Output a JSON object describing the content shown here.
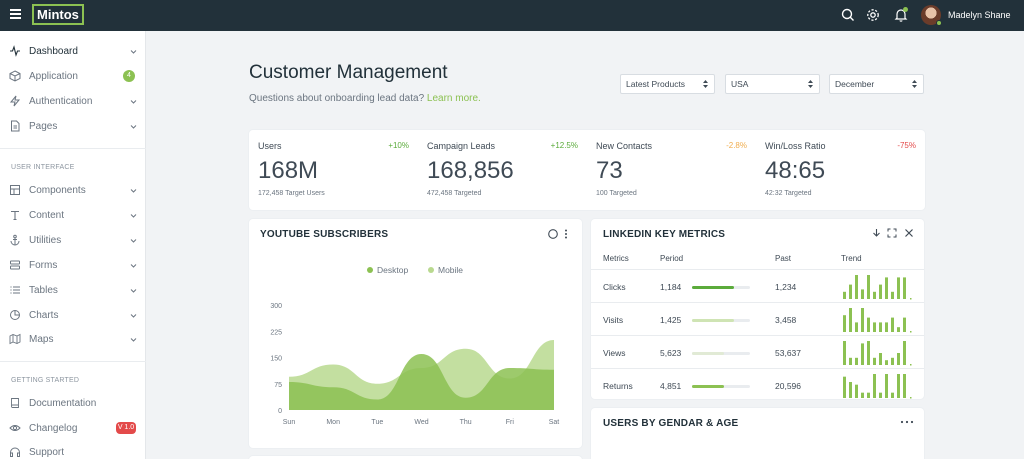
{
  "topbar": {
    "logo": "Mintos",
    "user_name": "Madelyn Shane"
  },
  "sidebar": {
    "items": [
      {
        "label": "Dashboard",
        "icon": "activity-icon"
      },
      {
        "label": "Application",
        "icon": "box-icon",
        "badge": "4"
      },
      {
        "label": "Authentication",
        "icon": "zap-icon"
      },
      {
        "label": "Pages",
        "icon": "file-icon"
      }
    ],
    "section_ui": "USER INTERFACE",
    "ui_items": [
      {
        "label": "Components",
        "icon": "grid-icon"
      },
      {
        "label": "Content",
        "icon": "type-icon"
      },
      {
        "label": "Utilities",
        "icon": "anchor-icon"
      },
      {
        "label": "Forms",
        "icon": "forms-icon"
      },
      {
        "label": "Tables",
        "icon": "list-icon"
      },
      {
        "label": "Charts",
        "icon": "pie-chart-icon"
      },
      {
        "label": "Maps",
        "icon": "map-icon"
      }
    ],
    "section_start": "GETTING STARTED",
    "start_items": [
      {
        "label": "Documentation",
        "icon": "book-icon"
      },
      {
        "label": "Changelog",
        "icon": "eye-icon",
        "badge": "V 1.0"
      },
      {
        "label": "Support",
        "icon": "headphones-icon"
      }
    ]
  },
  "header": {
    "title": "Customer Management",
    "subtitle": "Questions about onboarding lead data?",
    "link": "Learn more.",
    "filters": [
      "Latest Products",
      "USA",
      "December"
    ]
  },
  "stats": [
    {
      "label": "Users",
      "change": "+10%",
      "change_color": "#5bab3b",
      "value": "168M",
      "target": "172,458 Target Users"
    },
    {
      "label": "Campaign Leads",
      "change": "+12.5%",
      "change_color": "#5bab3b",
      "value": "168,856",
      "target": "472,458 Targeted"
    },
    {
      "label": "New Contacts",
      "change": "-2.8%",
      "change_color": "#f0ad4e",
      "value": "73",
      "target": "100 Targeted"
    },
    {
      "label": "Win/Loss Ratio",
      "change": "-75%",
      "change_color": "#e34a4a",
      "value": "48:65",
      "target": "42:32 Targeted"
    }
  ],
  "youtube": {
    "title": "YOUTUBE SUBSCRIBERS"
  },
  "chart_data": {
    "type": "area",
    "categories": [
      "Sun",
      "Mon",
      "Tue",
      "Wed",
      "Thu",
      "Fri",
      "Sat"
    ],
    "ylim": [
      0,
      300
    ],
    "yticks": [
      0,
      75,
      150,
      225,
      300
    ],
    "series": [
      {
        "name": "Desktop",
        "color": "#8cc152",
        "values": [
          80,
          65,
          30,
          160,
          35,
          120,
          115
        ]
      },
      {
        "name": "Mobile",
        "color": "#b9d98f",
        "values": [
          95,
          130,
          75,
          120,
          175,
          90,
          200
        ]
      }
    ],
    "grid": false,
    "legend": "top-center"
  },
  "linkedin": {
    "title": "LINKEDIN KEY METRICS",
    "headers": [
      "Metrics",
      "Period",
      "Past",
      "Trend"
    ],
    "rows": [
      {
        "metric": "Clicks",
        "period": "1,184",
        "progress": 0.72,
        "bar_color": "#5bab3b",
        "past": "1,234",
        "trend": [
          3,
          6,
          10,
          4,
          10,
          3,
          6,
          9,
          3,
          9,
          9
        ]
      },
      {
        "metric": "Visits",
        "period": "1,425",
        "progress": 0.72,
        "bar_color": "#cfe4b4",
        "past": "3,458",
        "trend": [
          7,
          10,
          4,
          10,
          6,
          4,
          4,
          4,
          6,
          2,
          6
        ]
      },
      {
        "metric": "Views",
        "period": "5,623",
        "progress": 0.55,
        "bar_color": "#e1ead5",
        "past": "53,637",
        "trend": [
          10,
          3,
          3,
          9,
          10,
          3,
          5,
          2,
          3,
          5,
          10
        ]
      },
      {
        "metric": "Returns",
        "period": "4,851",
        "progress": 0.55,
        "bar_color": "#8cc152",
        "past": "20,596",
        "trend": [
          8,
          6,
          5,
          2,
          2,
          9,
          2,
          9,
          2,
          9,
          9
        ]
      }
    ]
  },
  "users_by": {
    "title": "USERS BY GENDAR & AGE"
  }
}
